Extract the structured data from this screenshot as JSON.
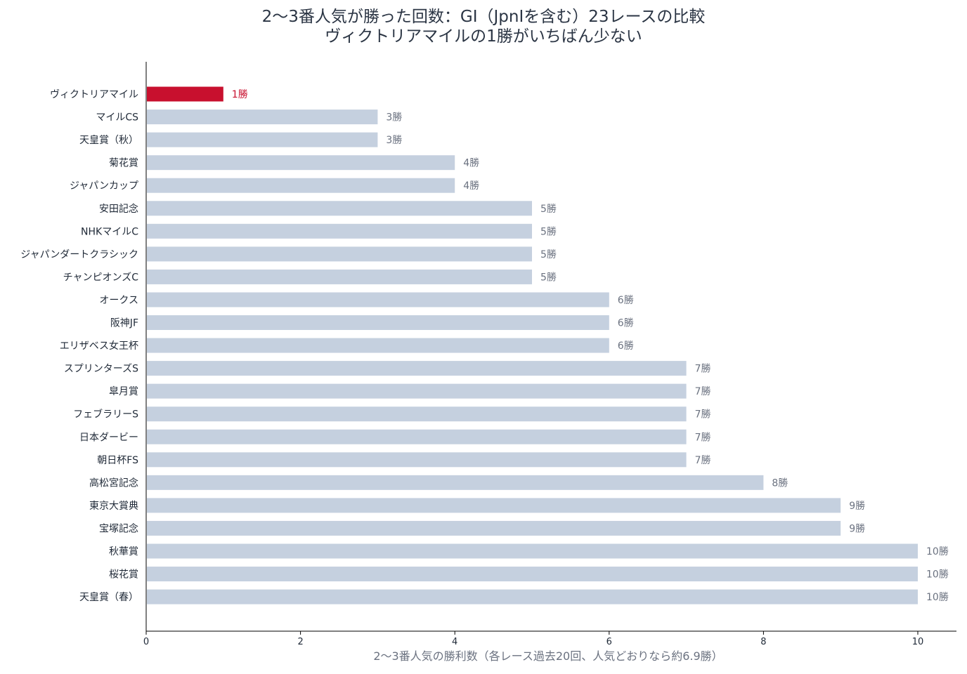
{
  "chart_data": {
    "type": "bar",
    "orientation": "horizontal",
    "title": "2〜3番人気が勝った回数：GⅠ（JpnⅠを含む）23レースの比較",
    "subtitle": "ヴィクトリアマイルの1勝がいちばん少ない",
    "xlabel": "2〜3番人気の勝利数（各レース過去20回、人気どおりなら約6.9勝）",
    "ylabel": "",
    "xlim": [
      0,
      10.5
    ],
    "xticks": [
      0,
      2,
      4,
      6,
      8,
      10
    ],
    "value_suffix": "勝",
    "highlight_category": "ヴィクトリアマイル",
    "colors": {
      "bar": "#c5d0df",
      "highlight": "#c8102e",
      "value_text": "#6b7280"
    },
    "categories": [
      "ヴィクトリアマイル",
      "マイルCS",
      "天皇賞（秋）",
      "菊花賞",
      "ジャパンカップ",
      "安田記念",
      "NHKマイルC",
      "ジャパンダートクラシック",
      "チャンピオンズC",
      "オークス",
      "阪神JF",
      "エリザベス女王杯",
      "スプリンターズS",
      "皐月賞",
      "フェブラリーS",
      "日本ダービー",
      "朝日杯FS",
      "高松宮記念",
      "東京大賞典",
      "宝塚記念",
      "秋華賞",
      "桜花賞",
      "天皇賞（春）"
    ],
    "values": [
      1,
      3,
      3,
      4,
      4,
      5,
      5,
      5,
      5,
      6,
      6,
      6,
      7,
      7,
      7,
      7,
      7,
      8,
      9,
      9,
      10,
      10,
      10
    ],
    "grid": false
  }
}
